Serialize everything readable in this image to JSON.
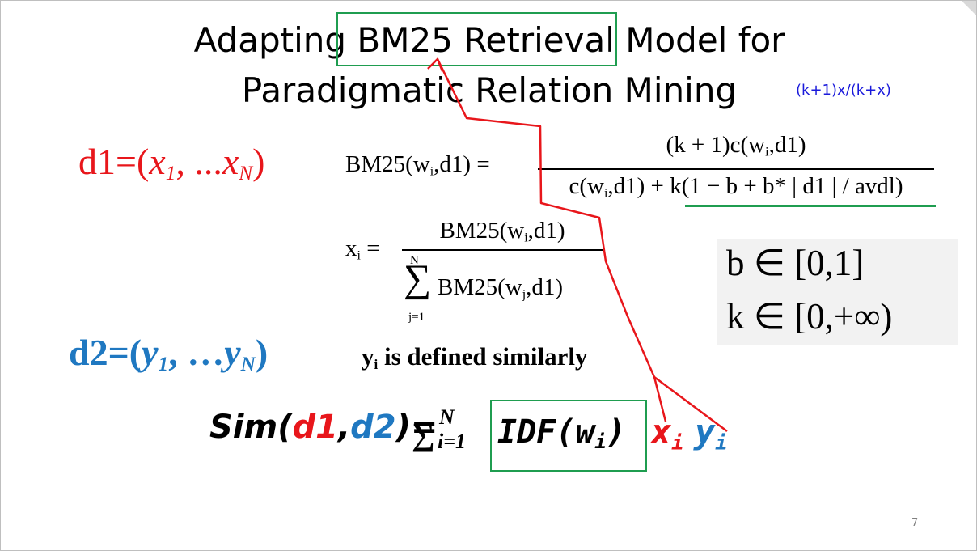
{
  "title": {
    "line1_pre": "Adapting ",
    "line1_boxed": "BM25 Retrieval ",
    "line1_post": "Model for",
    "line2": "Paradigmatic Relation Mining"
  },
  "note": "(k+1)x/(k+x)",
  "d1": {
    "prefix": "d1=(",
    "x1": "x",
    "s1": "1",
    "mid": ", ...",
    "xN": "x",
    "sN": "N",
    "suffix": ")"
  },
  "d2": {
    "prefix": "d2=(",
    "y1": "y",
    "s1": "1",
    "mid": ", …",
    "yN": "y",
    "sN": "N",
    "suffix": ")"
  },
  "bm25": {
    "lhs_a": "BM25(w",
    "lhs_sub": "i",
    "lhs_b": ",d1) =",
    "num_a": "(k + 1)c(w",
    "num_sub": "i",
    "num_b": ",d1)",
    "den_a": "c(w",
    "den_sub": "i",
    "den_b": ",d1) + k(1 − b + b* | d1 | / avdl)"
  },
  "xi": {
    "lhs_a": "x",
    "lhs_sub": "i",
    "lhs_b": " =",
    "num_a": "BM25(w",
    "num_sub": "i",
    "num_b": ",d1)",
    "sum_top": "N",
    "sum_sym": "∑",
    "sum_bot": "j=1",
    "den_a": "BM25(w",
    "den_sub": "j",
    "den_b": ",d1)"
  },
  "yi_def": {
    "a": "y",
    "sub": "i",
    "b": " is defined similarly"
  },
  "ranges": {
    "b": "b ∈ [0,1]",
    "k": "k ∈ [0,+∞)"
  },
  "sim": {
    "pre": "Sim(",
    "d1": "d1",
    "comma": ",",
    "d2": "d2",
    "post": ")=",
    "sum": "∑",
    "top": "N",
    "bot": "i=1",
    "idf_a": "IDF(w",
    "idf_sub": "i",
    "idf_b": ")",
    "x": "x",
    "xsub": "i",
    "y": "y",
    "ysub": "i"
  },
  "page_number": "7",
  "colors": {
    "red": "#e8161b",
    "blue": "#1f78c1",
    "green": "#1f9d50",
    "note_blue": "#1a1adb"
  }
}
